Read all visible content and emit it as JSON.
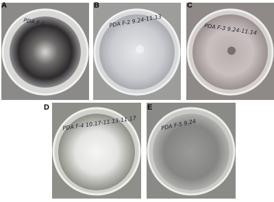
{
  "panels": [
    {
      "label": "A",
      "note": "PDA F-1"
    },
    {
      "label": "B",
      "note": "PDA F-2 9.24-11.13"
    },
    {
      "label": "C",
      "note": "PDA F-3 9.24-11.14"
    },
    {
      "label": "D",
      "note": "PDA F-4 10.17-11.13-11.17"
    },
    {
      "label": "E",
      "note": "PDA F-5 9.24"
    }
  ]
}
